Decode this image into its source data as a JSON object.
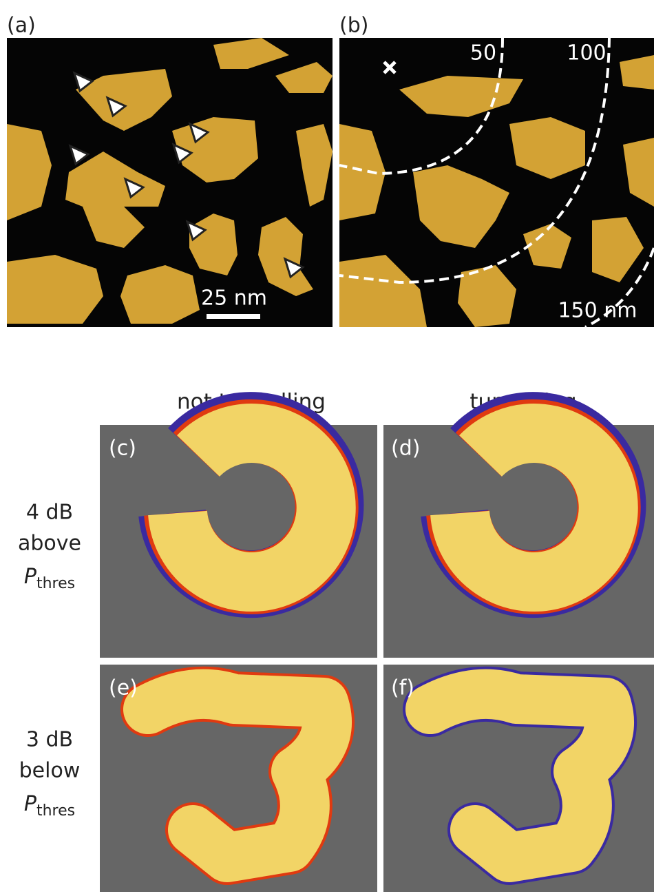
{
  "panels": [
    {
      "label": "(a)"
    },
    {
      "label": "(b)"
    },
    {
      "label": "(c)"
    },
    {
      "label": "(d)"
    },
    {
      "label": "(e)"
    },
    {
      "label": "(f)"
    }
  ],
  "scale_bar": "25 nm",
  "contours": [
    "50",
    "100",
    "150 nm"
  ],
  "columns": [
    "not tunnelling",
    "tunnelling"
  ],
  "rows": [
    {
      "lines": [
        "4 dB",
        "above"
      ],
      "symbol": "P",
      "subscript": "thres"
    },
    {
      "lines": [
        "3 dB",
        "below"
      ],
      "symbol": "P",
      "subscript": "thres"
    }
  ]
}
